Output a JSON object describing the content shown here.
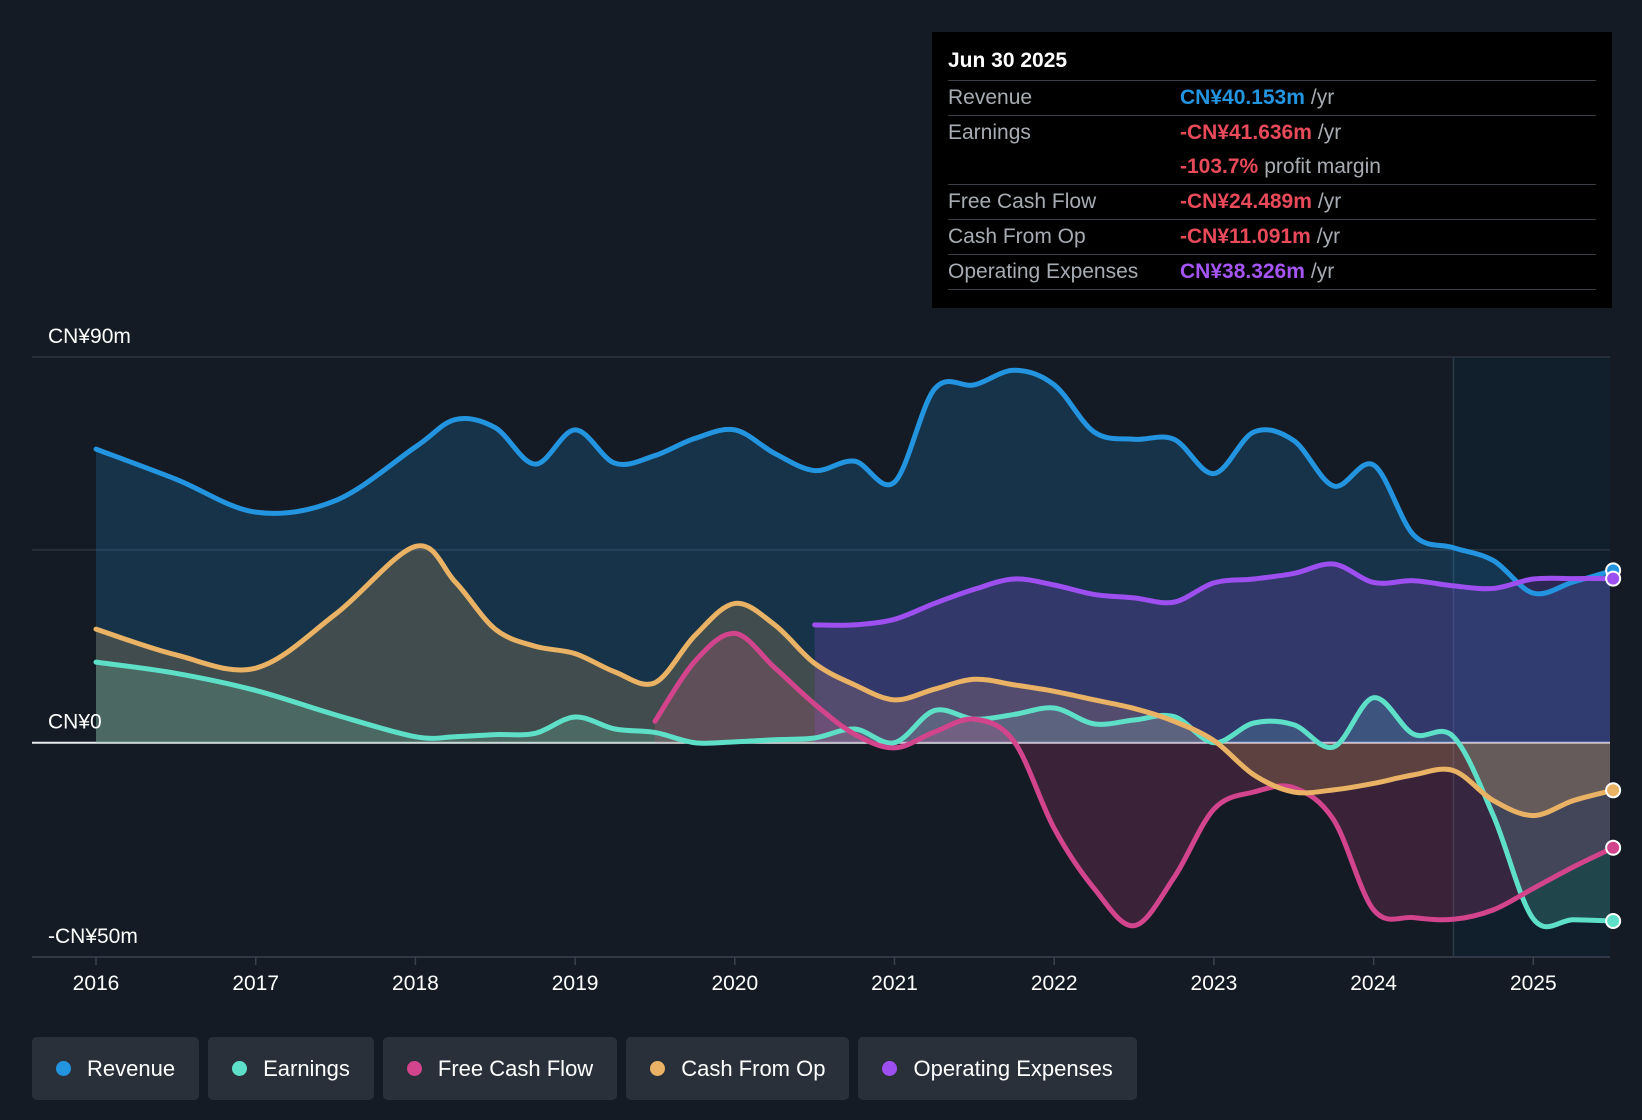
{
  "chart_data": {
    "type": "line",
    "x_ticks": [
      "2016",
      "2017",
      "2018",
      "2019",
      "2020",
      "2021",
      "2022",
      "2023",
      "2024",
      "2025"
    ],
    "y_tick_labels": [
      {
        "label": "CN¥90m",
        "value": 90
      },
      {
        "label": "CN¥0",
        "value": 0
      },
      {
        "label": "-CN¥50m",
        "value": -50
      }
    ],
    "ylim": [
      -50,
      90
    ],
    "xlim": [
      2015.6,
      2025.5
    ],
    "forecast_start": 2024.5,
    "series": [
      {
        "name": "Revenue",
        "color": "#2394df",
        "fill": true,
        "points": [
          [
            2016.0,
            68.5
          ],
          [
            2016.5,
            61.5
          ],
          [
            2017.0,
            53.8
          ],
          [
            2017.5,
            56.5
          ],
          [
            2018.0,
            69
          ],
          [
            2018.25,
            75.4
          ],
          [
            2018.5,
            73.5
          ],
          [
            2018.75,
            65
          ],
          [
            2019.0,
            73
          ],
          [
            2019.25,
            65.2
          ],
          [
            2019.5,
            67
          ],
          [
            2019.75,
            71
          ],
          [
            2020.0,
            73
          ],
          [
            2020.25,
            67.5
          ],
          [
            2020.5,
            63.5
          ],
          [
            2020.75,
            65.7
          ],
          [
            2021.0,
            60.8
          ],
          [
            2021.25,
            82.5
          ],
          [
            2021.5,
            83.5
          ],
          [
            2021.75,
            86.9
          ],
          [
            2022.0,
            83.5
          ],
          [
            2022.25,
            72.5
          ],
          [
            2022.5,
            70.8
          ],
          [
            2022.75,
            70.8
          ],
          [
            2023.0,
            62.8
          ],
          [
            2023.25,
            72.5
          ],
          [
            2023.5,
            70.5
          ],
          [
            2023.75,
            59.9
          ],
          [
            2024.0,
            64.8
          ],
          [
            2024.25,
            48.5
          ],
          [
            2024.5,
            45.5
          ],
          [
            2024.75,
            42.5
          ],
          [
            2025.0,
            34.9
          ],
          [
            2025.25,
            37.5
          ],
          [
            2025.5,
            40.2
          ]
        ]
      },
      {
        "name": "Earnings",
        "color": "#5ee0c8",
        "fill": true,
        "points": [
          [
            2016.0,
            18.8
          ],
          [
            2016.5,
            16.2
          ],
          [
            2017.0,
            12.2
          ],
          [
            2017.5,
            6.5
          ],
          [
            2018.0,
            1.4
          ],
          [
            2018.25,
            1.4
          ],
          [
            2018.5,
            1.9
          ],
          [
            2018.75,
            2.2
          ],
          [
            2019.0,
            6.0
          ],
          [
            2019.25,
            3.2
          ],
          [
            2019.5,
            2.4
          ],
          [
            2019.75,
            0
          ],
          [
            2020.0,
            0.2
          ],
          [
            2020.25,
            0.7
          ],
          [
            2020.5,
            1.1
          ],
          [
            2020.75,
            3.2
          ],
          [
            2021.0,
            0
          ],
          [
            2021.25,
            7.5
          ],
          [
            2021.5,
            5.5
          ],
          [
            2021.75,
            6.6
          ],
          [
            2022.0,
            8.1
          ],
          [
            2022.25,
            4.4
          ],
          [
            2022.5,
            5.3
          ],
          [
            2022.75,
            6.1
          ],
          [
            2023.0,
            0
          ],
          [
            2023.25,
            4.6
          ],
          [
            2023.5,
            4.2
          ],
          [
            2023.75,
            -1.0
          ],
          [
            2024.0,
            10.5
          ],
          [
            2024.25,
            2.0
          ],
          [
            2024.5,
            1.4
          ],
          [
            2024.75,
            -17
          ],
          [
            2025.0,
            -41.1
          ],
          [
            2025.25,
            -41.3
          ],
          [
            2025.5,
            -41.6
          ]
        ]
      },
      {
        "name": "Free Cash Flow",
        "color": "#d2448b",
        "fill": true,
        "points": [
          [
            2019.5,
            5.0
          ],
          [
            2019.75,
            19.0
          ],
          [
            2020.0,
            25.5
          ],
          [
            2020.25,
            17.5
          ],
          [
            2020.5,
            9.0
          ],
          [
            2020.75,
            2.0
          ],
          [
            2021.0,
            -1.2
          ],
          [
            2021.25,
            2.5
          ],
          [
            2021.5,
            5.5
          ],
          [
            2021.75,
            0.2
          ],
          [
            2022.0,
            -20
          ],
          [
            2022.25,
            -34
          ],
          [
            2022.5,
            -42.7
          ],
          [
            2022.75,
            -31.5
          ],
          [
            2023.0,
            -15.5
          ],
          [
            2023.25,
            -11.5
          ],
          [
            2023.5,
            -10.5
          ],
          [
            2023.75,
            -18
          ],
          [
            2024.0,
            -39
          ],
          [
            2024.25,
            -40.8
          ],
          [
            2024.5,
            -41.2
          ],
          [
            2024.75,
            -39
          ],
          [
            2025.0,
            -34
          ],
          [
            2025.25,
            -29
          ],
          [
            2025.5,
            -24.5
          ]
        ]
      },
      {
        "name": "Cash From Op",
        "color": "#e9b264",
        "fill": true,
        "points": [
          [
            2016.0,
            26.5
          ],
          [
            2016.5,
            20.5
          ],
          [
            2017.0,
            17.4
          ],
          [
            2017.5,
            30
          ],
          [
            2018.0,
            45.8
          ],
          [
            2018.25,
            37.5
          ],
          [
            2018.5,
            26.5
          ],
          [
            2018.75,
            22.5
          ],
          [
            2019.0,
            20.8
          ],
          [
            2019.25,
            16.5
          ],
          [
            2019.5,
            14.0
          ],
          [
            2019.75,
            25
          ],
          [
            2020.0,
            32.5
          ],
          [
            2020.25,
            27.5
          ],
          [
            2020.5,
            18.5
          ],
          [
            2020.75,
            13.5
          ],
          [
            2021.0,
            10.0
          ],
          [
            2021.25,
            12.5
          ],
          [
            2021.5,
            14.8
          ],
          [
            2021.75,
            13.5
          ],
          [
            2022.0,
            12.0
          ],
          [
            2022.25,
            10.0
          ],
          [
            2022.5,
            8.0
          ],
          [
            2022.75,
            5.0
          ],
          [
            2023.0,
            0.5
          ],
          [
            2023.25,
            -7.5
          ],
          [
            2023.5,
            -11.5
          ],
          [
            2023.75,
            -11
          ],
          [
            2024.0,
            -9.5
          ],
          [
            2024.25,
            -7.5
          ],
          [
            2024.5,
            -6.5
          ],
          [
            2024.75,
            -13.5
          ],
          [
            2025.0,
            -17
          ],
          [
            2025.25,
            -13.5
          ],
          [
            2025.5,
            -11.1
          ]
        ]
      },
      {
        "name": "Operating Expenses",
        "color": "#9e4ff0",
        "fill": true,
        "points": [
          [
            2020.5,
            27.5
          ],
          [
            2020.75,
            27.5
          ],
          [
            2021.0,
            28.8
          ],
          [
            2021.25,
            32.5
          ],
          [
            2021.5,
            35.8
          ],
          [
            2021.75,
            38.2
          ],
          [
            2022.0,
            36.8
          ],
          [
            2022.25,
            34.6
          ],
          [
            2022.5,
            33.8
          ],
          [
            2022.75,
            32.8
          ],
          [
            2023.0,
            37.3
          ],
          [
            2023.25,
            38.2
          ],
          [
            2023.5,
            39.5
          ],
          [
            2023.75,
            41.7
          ],
          [
            2024.0,
            37.4
          ],
          [
            2024.25,
            37.8
          ],
          [
            2024.5,
            36.6
          ],
          [
            2024.75,
            36.0
          ],
          [
            2025.0,
            38.2
          ],
          [
            2025.25,
            38.3
          ],
          [
            2025.5,
            38.3
          ]
        ]
      }
    ]
  },
  "tooltip": {
    "date": "Jun 30 2025",
    "rows": [
      {
        "label": "Revenue",
        "value": "CN¥40.153m",
        "unit": "/yr",
        "color": "#2394df"
      },
      {
        "label": "Earnings",
        "value": "-CN¥41.636m",
        "unit": "/yr",
        "color": "#e84a5a"
      },
      {
        "label": "",
        "value": "-103.7%",
        "unit": "profit margin",
        "color": "#e84a5a"
      },
      {
        "label": "Free Cash Flow",
        "value": "-CN¥24.489m",
        "unit": "/yr",
        "color": "#e84a5a"
      },
      {
        "label": "Cash From Op",
        "value": "-CN¥11.091m",
        "unit": "/yr",
        "color": "#e84a5a"
      },
      {
        "label": "Operating Expenses",
        "value": "CN¥38.326m",
        "unit": "/yr",
        "color": "#a555f5"
      }
    ]
  },
  "legend": [
    {
      "label": "Revenue",
      "color": "#2394df"
    },
    {
      "label": "Earnings",
      "color": "#5ee0c8"
    },
    {
      "label": "Free Cash Flow",
      "color": "#d2448b"
    },
    {
      "label": "Cash From Op",
      "color": "#e9b264"
    },
    {
      "label": "Operating Expenses",
      "color": "#9e4ff0"
    }
  ]
}
